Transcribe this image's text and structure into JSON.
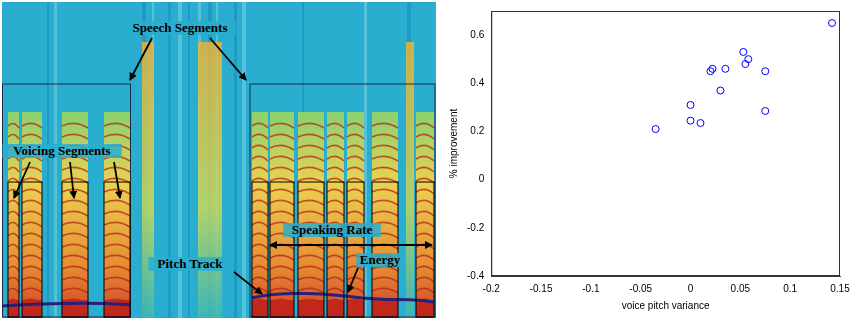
{
  "spectrogram": {
    "labels": {
      "speech_segments": "Speech Segments",
      "voicing_segments": "Voicing Segments",
      "speaking_rate": "Speaking Rate",
      "pitch_track": "Pitch Track",
      "energy": "Energy"
    }
  },
  "chart_data": {
    "type": "scatter",
    "x_label": "voice pitch variance",
    "y_label": "% improvement",
    "x": [
      0.142,
      -0.035,
      0.0,
      0.0,
      0.01,
      0.02,
      0.022,
      0.035,
      0.03,
      0.053,
      0.055,
      0.058,
      0.075,
      0.075
    ],
    "values": [
      0.65,
      0.21,
      0.31,
      0.245,
      0.235,
      0.45,
      0.46,
      0.46,
      0.37,
      0.53,
      0.48,
      0.5,
      0.45,
      0.285
    ],
    "color": "#0000ff",
    "marker": "circle-open",
    "grid": false,
    "xlim": [
      -0.2,
      0.15
    ],
    "xticks": [
      -0.2,
      -0.15,
      -0.1,
      -0.05,
      0,
      0.05,
      0.1,
      0.15
    ],
    "ylim": [
      -0.4,
      0.7
    ],
    "yticks": [
      -0.4,
      -0.2,
      0,
      0.2,
      0.4,
      0.6
    ]
  }
}
